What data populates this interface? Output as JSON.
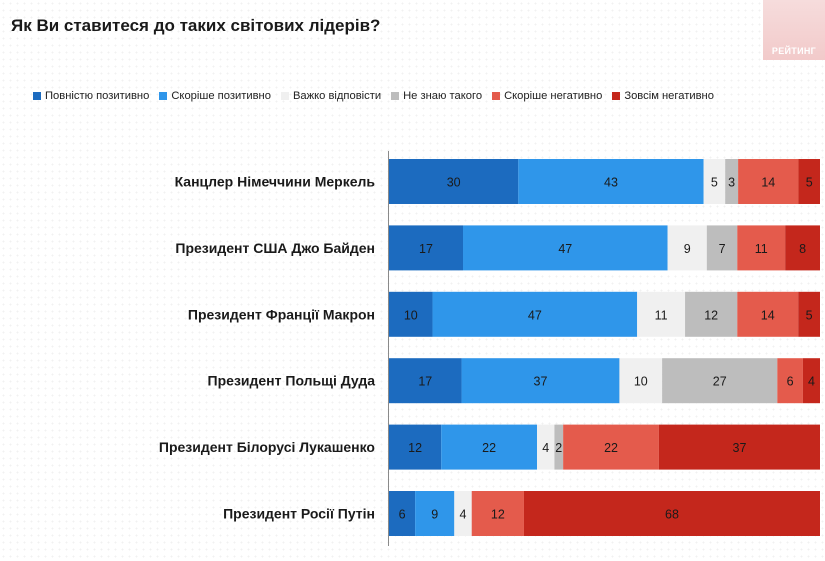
{
  "title": "Як Ви ставитеся до таких світових лідерів?",
  "logo": {
    "text": "РЕЙТИНГ"
  },
  "chart_data": {
    "type": "bar",
    "orientation": "horizontal",
    "stacked": true,
    "normalized_to_100": true,
    "legend_position": "top",
    "grid": false,
    "title": "Як Ви ставитеся до таких світових лідерів?",
    "categories": [
      "Канцлер Німеччини Меркель",
      "Президент США Джо Байден",
      "Президент Франції Макрон",
      "Президент Польщі Дуда",
      "Президент Білорусі Лукашенко",
      "Президент Росії Путін"
    ],
    "series": [
      {
        "name": "Повністю позитивно",
        "color": "#1c6bbf",
        "label_color": "#1a1a1a",
        "values": [
          30,
          17,
          10,
          17,
          12,
          6
        ]
      },
      {
        "name": "Скоріше позитивно",
        "color": "#2f96ea",
        "label_color": "#1a1a1a",
        "values": [
          43,
          47,
          47,
          37,
          22,
          9
        ]
      },
      {
        "name": "Важко відповісти",
        "color": "#f0f0f0",
        "label_color": "#1a1a1a",
        "values": [
          5,
          9,
          11,
          10,
          4,
          4
        ]
      },
      {
        "name": "Не знаю такого",
        "color": "#bdbdbd",
        "label_color": "#1a1a1a",
        "values": [
          3,
          7,
          12,
          27,
          2,
          0
        ]
      },
      {
        "name": "Скоріше негативно",
        "color": "#e45b4c",
        "label_color": "#1a1a1a",
        "values": [
          14,
          11,
          14,
          6,
          22,
          12
        ]
      },
      {
        "name": "Зовсім негативно",
        "color": "#c4271c",
        "label_color": "#1a1a1a",
        "values": [
          5,
          8,
          5,
          4,
          37,
          68
        ]
      }
    ]
  }
}
